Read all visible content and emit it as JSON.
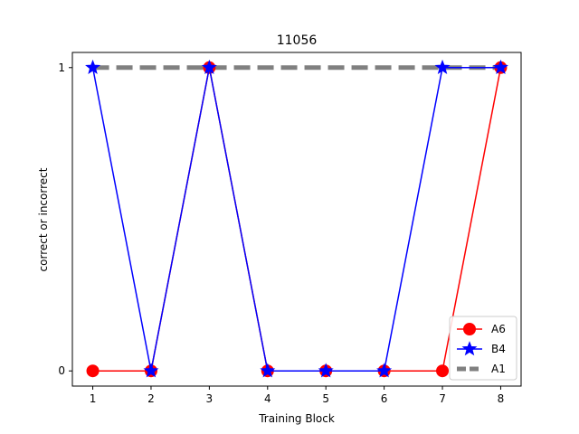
{
  "chart_data": {
    "type": "line",
    "title": "11056",
    "xlabel": "Training Block",
    "ylabel": "correct or incorrect",
    "x": [
      1,
      2,
      3,
      4,
      5,
      6,
      7,
      8
    ],
    "xlim": [
      0.65,
      8.35
    ],
    "ylim": [
      -0.05,
      1.05
    ],
    "xticks": [
      1,
      2,
      3,
      4,
      5,
      6,
      7,
      8
    ],
    "yticks": [
      0,
      1
    ],
    "grid": false,
    "legend_position": "lower right",
    "series": [
      {
        "name": "A6",
        "values": [
          0,
          0,
          1,
          0,
          0,
          0,
          0,
          1
        ],
        "color": "#ff0000",
        "marker": "circle",
        "dashed": false
      },
      {
        "name": "B4",
        "values": [
          1,
          0,
          1,
          0,
          0,
          0,
          1,
          1
        ],
        "color": "#0000ff",
        "marker": "star",
        "dashed": false
      },
      {
        "name": "A1",
        "values": [
          1,
          1,
          1,
          1,
          1,
          1,
          1,
          1
        ],
        "color": "#808080",
        "marker": "none",
        "dashed": true
      }
    ]
  }
}
